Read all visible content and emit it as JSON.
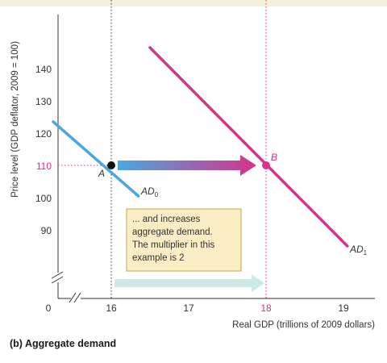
{
  "chart_data": {
    "type": "line",
    "title": "(b) Aggregate demand",
    "xlabel": "Real GDP (trillions of 2009 dollars)",
    "ylabel": "Price level (GDP deflator, 2009 = 100)",
    "xlim": [
      15.2,
      19.4
    ],
    "ylim": [
      70,
      160
    ],
    "x_ticks": [
      "0",
      "16",
      "17",
      "18",
      "19"
    ],
    "y_ticks": [
      "90",
      "100",
      "110",
      "120",
      "130",
      "140"
    ],
    "series": [
      {
        "name": "AD0",
        "points": [
          [
            15.25,
            123.5
          ],
          [
            16.35,
            100.5
          ]
        ],
        "color": "#4aa8e0"
      },
      {
        "name": "AD1",
        "points": [
          [
            16.5,
            146.5
          ],
          [
            19.05,
            85.0
          ]
        ],
        "color": "#d6338a"
      }
    ],
    "curve_labels": {
      "ad0": {
        "main": "AD",
        "sub": "0"
      },
      "ad1": {
        "main": "AD",
        "sub": "1"
      }
    },
    "points": [
      {
        "label": "A",
        "x": 16,
        "y": 110,
        "color": "#111111"
      },
      {
        "label": "B",
        "x": 18,
        "y": 110,
        "color": "#d6338a"
      }
    ],
    "highlight_price": "110",
    "highlight_gdp": "18",
    "annotation_lines": [
      "... and increases",
      "aggregate demand.",
      "The multiplier in this",
      "example is 2"
    ],
    "colors": {
      "ad0": "#4aa8e0",
      "ad1": "#d6338a",
      "accent": "#d6338a",
      "note_bg": "#fbeec4",
      "note_border": "#c9a44a",
      "bottom_arrow": "#cde9e6"
    }
  }
}
